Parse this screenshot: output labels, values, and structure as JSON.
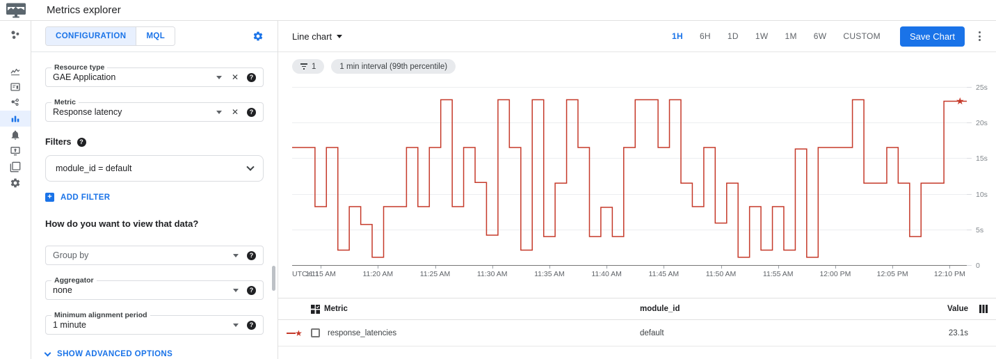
{
  "app": {
    "title": "Metrics explorer"
  },
  "sidebar": {
    "icons": [
      "monitoring-logo",
      "metrics-trend",
      "dashboards-card",
      "services-graph",
      "metrics-explorer-bars",
      "alerting-bell",
      "uptime-monitor",
      "groups-layers",
      "settings-gear"
    ],
    "active": "metrics-explorer-bars"
  },
  "config": {
    "tabs": [
      {
        "label": "CONFIGURATION",
        "active": true
      },
      {
        "label": "MQL",
        "active": false
      }
    ],
    "resource_type": {
      "label": "Resource type",
      "value": "GAE Application"
    },
    "metric": {
      "label": "Metric",
      "value": "Response latency"
    },
    "filters_label": "Filters",
    "filter_chip": "module_id = default",
    "add_filter_label": "ADD FILTER",
    "view_data_question": "How do you want to view that data?",
    "group_by": {
      "placeholder": "Group by"
    },
    "aggregator": {
      "label": "Aggregator",
      "value": "none"
    },
    "min_alignment_period": {
      "label": "Minimum alignment period",
      "value": "1 minute"
    },
    "show_advanced_label": "SHOW ADVANCED OPTIONS"
  },
  "toolbar": {
    "chart_type": "Line chart",
    "ranges": [
      "1H",
      "6H",
      "1D",
      "1W",
      "1M",
      "6W",
      "CUSTOM"
    ],
    "active_range": "1H",
    "save_label": "Save Chart"
  },
  "chips": {
    "filter_count": "1",
    "interval": "1 min interval (99th percentile)"
  },
  "chart_data": {
    "type": "line",
    "title": "Response latency, 99th percentile, 1 min interval",
    "unit": "seconds",
    "line_style": "step",
    "grid": "horizontal-only",
    "ylim": [
      0,
      25
    ],
    "yticks": [
      {
        "label": "25s",
        "value": 25
      },
      {
        "label": "20s",
        "value": 20
      },
      {
        "label": "15s",
        "value": 15
      },
      {
        "label": "10s",
        "value": 10
      },
      {
        "label": "5s",
        "value": 5
      },
      {
        "label": "0",
        "value": 0
      }
    ],
    "timezone_label": "UTC+11",
    "x_start_min": 12.5,
    "x_end_min": 71.5,
    "xticks": [
      {
        "label": "11:15 AM",
        "minute": 15
      },
      {
        "label": "11:20 AM",
        "minute": 20
      },
      {
        "label": "11:25 AM",
        "minute": 25
      },
      {
        "label": "11:30 AM",
        "minute": 30
      },
      {
        "label": "11:35 AM",
        "minute": 35
      },
      {
        "label": "11:40 AM",
        "minute": 40
      },
      {
        "label": "11:45 AM",
        "minute": 45
      },
      {
        "label": "11:50 AM",
        "minute": 50
      },
      {
        "label": "11:55 AM",
        "minute": 55
      },
      {
        "label": "12:00 PM",
        "minute": 60
      },
      {
        "label": "12:05 PM",
        "minute": 65
      },
      {
        "label": "12:10 PM",
        "minute": 70
      }
    ],
    "series": [
      {
        "name": "response_latencies",
        "color": "#c53929",
        "interval_minutes": 1,
        "values_seconds": [
          16.6,
          16.6,
          8.3,
          16.6,
          2.2,
          8.3,
          5.8,
          1.2,
          8.3,
          8.3,
          16.6,
          8.3,
          16.6,
          23.3,
          8.3,
          16.6,
          11.7,
          4.3,
          23.3,
          16.6,
          2.2,
          23.3,
          4.1,
          11.6,
          23.3,
          16.6,
          4.1,
          8.2,
          4.1,
          16.6,
          23.3,
          23.3,
          16.6,
          23.3,
          11.6,
          8.3,
          16.6,
          6.0,
          11.6,
          1.2,
          8.3,
          2.2,
          8.3,
          2.2,
          16.4,
          1.2,
          16.6,
          16.6,
          16.6,
          23.3,
          11.6,
          11.6,
          16.6,
          11.6,
          4.1,
          11.6,
          11.6,
          23.1,
          23.1
        ]
      }
    ],
    "end_marker": {
      "shape": "star",
      "value_seconds": 23.1
    }
  },
  "table": {
    "columns": [
      "Metric",
      "module_id",
      "Value"
    ],
    "rows": [
      {
        "metric": "response_latencies",
        "module_id": "default",
        "value": "23.1s",
        "checked": false
      }
    ]
  },
  "colors": {
    "accent": "#1a73e8",
    "accent_bg": "#e8f0fe",
    "line_red": "#c53929"
  }
}
